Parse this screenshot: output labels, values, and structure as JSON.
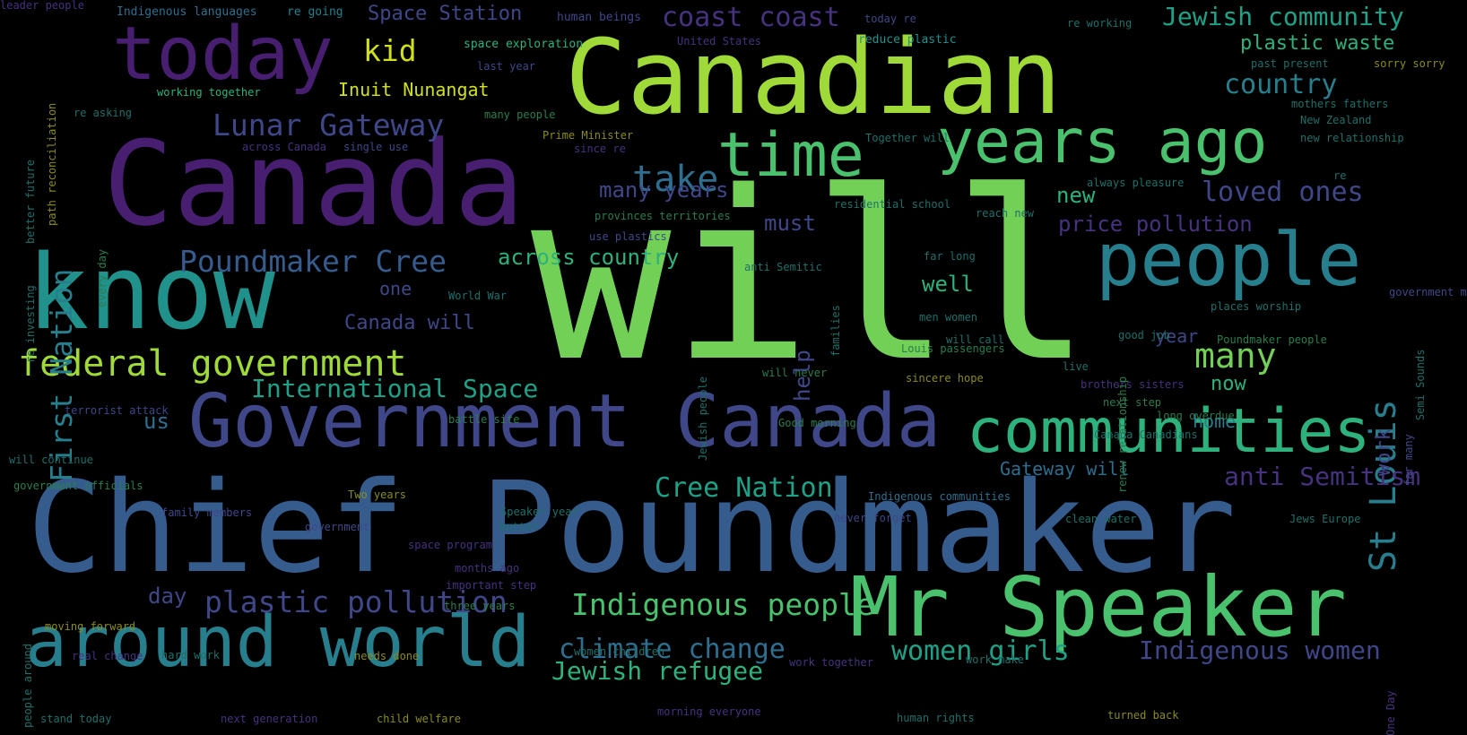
{
  "palette": {
    "dark_purple": "#481f70",
    "purple": "#46327e",
    "indigo": "#3f4788",
    "blue": "#365c8d",
    "steel": "#2e6e8e",
    "teal": "#277f8e",
    "sea": "#21918c",
    "green_teal": "#1fa187",
    "green": "#2db27d",
    "light_green": "#4ac16d",
    "lime": "#73d056",
    "yellow_green": "#a0da39",
    "yellow": "#d0e11c",
    "bright_yellow": "#fde725",
    "dim_teal": "#1f6f6a",
    "dim_green": "#2a7d4f",
    "dim_yellow": "#8a8a20"
  },
  "words": [
    {
      "text": "will",
      "color": "lime"
    },
    {
      "text": "Chief Poundmaker",
      "color": "blue"
    },
    {
      "text": "Canada",
      "color": "dark_purple"
    },
    {
      "text": "Canadian",
      "color": "yellow_green"
    },
    {
      "text": "know",
      "color": "sea"
    },
    {
      "text": "Government Canada",
      "color": "indigo"
    },
    {
      "text": "Mr Speaker",
      "color": "light_green"
    },
    {
      "text": "around world",
      "color": "teal"
    },
    {
      "text": "today",
      "color": "dark_purple"
    },
    {
      "text": "people",
      "color": "teal"
    },
    {
      "text": "communities",
      "color": "green"
    },
    {
      "text": "years ago",
      "color": "light_green"
    },
    {
      "text": "time",
      "color": "light_green"
    },
    {
      "text": "federal government",
      "color": "yellow_green"
    },
    {
      "text": "St Louis",
      "color": "teal"
    },
    {
      "text": "Lunar Gateway",
      "color": "indigo"
    },
    {
      "text": "Poundmaker Cree",
      "color": "blue"
    },
    {
      "text": "First Nation",
      "color": "teal"
    },
    {
      "text": "take",
      "color": "steel"
    },
    {
      "text": "many",
      "color": "lime"
    },
    {
      "text": "Jewish community",
      "color": "green_teal"
    },
    {
      "text": "plastic pollution",
      "color": "indigo"
    },
    {
      "text": "Indigenous people",
      "color": "light_green"
    },
    {
      "text": "climate change",
      "color": "steel"
    },
    {
      "text": "Cree Nation",
      "color": "green_teal"
    },
    {
      "text": "country",
      "color": "teal"
    },
    {
      "text": "loved ones",
      "color": "indigo"
    },
    {
      "text": "coast coast",
      "color": "purple"
    },
    {
      "text": "women girls",
      "color": "green_teal"
    },
    {
      "text": "Indigenous women",
      "color": "indigo"
    },
    {
      "text": "anti Semitism",
      "color": "purple"
    },
    {
      "text": "Jewish refugee",
      "color": "green"
    },
    {
      "text": "kid",
      "color": "yellow"
    },
    {
      "text": "International Space",
      "color": "green_teal"
    },
    {
      "text": "Space Station",
      "color": "indigo"
    },
    {
      "text": "plastic waste",
      "color": "green"
    },
    {
      "text": "across country",
      "color": "green"
    },
    {
      "text": "Inuit Nunangat",
      "color": "yellow"
    },
    {
      "text": "must",
      "color": "indigo"
    },
    {
      "text": "many years",
      "color": "indigo"
    },
    {
      "text": "price pollution",
      "color": "purple"
    },
    {
      "text": "new",
      "color": "green"
    },
    {
      "text": "well",
      "color": "green"
    },
    {
      "text": "Canada will",
      "color": "indigo"
    },
    {
      "text": "one",
      "color": "indigo"
    },
    {
      "text": "us",
      "color": "steel"
    },
    {
      "text": "day",
      "color": "indigo"
    },
    {
      "text": "Gateway will",
      "color": "steel"
    },
    {
      "text": "year",
      "color": "indigo"
    },
    {
      "text": "help",
      "color": "indigo"
    },
    {
      "text": "now",
      "color": "green"
    },
    {
      "text": "work",
      "color": "indigo"
    },
    {
      "text": "home",
      "color": "teal"
    },
    {
      "text": "Indigenous languages",
      "color": "steel"
    },
    {
      "text": "re going",
      "color": "teal"
    },
    {
      "text": "human beings",
      "color": "indigo"
    },
    {
      "text": "United States",
      "color": "purple"
    },
    {
      "text": "today re",
      "color": "indigo"
    },
    {
      "text": "space exploration",
      "color": "green"
    },
    {
      "text": "reduce plastic",
      "color": "sea"
    },
    {
      "text": "last year",
      "color": "indigo"
    },
    {
      "text": "working together",
      "color": "green"
    },
    {
      "text": "re working",
      "color": "dim_teal"
    },
    {
      "text": "past present",
      "color": "dim_teal"
    },
    {
      "text": "sorry sorry",
      "color": "dim_yellow"
    },
    {
      "text": "mothers fathers",
      "color": "dim_teal"
    },
    {
      "text": "New Zealand",
      "color": "dim_teal"
    },
    {
      "text": "new relationship",
      "color": "dim_teal"
    },
    {
      "text": "re asking",
      "color": "dim_teal"
    },
    {
      "text": "many people",
      "color": "dim_green"
    },
    {
      "text": "Prime Minister",
      "color": "dim_yellow"
    },
    {
      "text": "across Canada",
      "color": "purple"
    },
    {
      "text": "single use",
      "color": "indigo"
    },
    {
      "text": "Together will",
      "color": "dim_teal"
    },
    {
      "text": "since re",
      "color": "purple"
    },
    {
      "text": "always pleasure",
      "color": "dim_teal"
    },
    {
      "text": "provinces territories",
      "color": "dim_green"
    },
    {
      "text": "residential school",
      "color": "dim_teal"
    },
    {
      "text": "reach new",
      "color": "dim_teal"
    },
    {
      "text": "use plastics",
      "color": "indigo"
    },
    {
      "text": "far long",
      "color": "dim_teal"
    },
    {
      "text": "anti Semitic",
      "color": "dim_teal"
    },
    {
      "text": "World War",
      "color": "dim_teal"
    },
    {
      "text": "men women",
      "color": "dim_teal"
    },
    {
      "text": "places worship",
      "color": "dim_teal"
    },
    {
      "text": "will call",
      "color": "dim_teal"
    },
    {
      "text": "Poundmaker people",
      "color": "dim_green"
    },
    {
      "text": "Louis passengers",
      "color": "dim_green"
    },
    {
      "text": "live",
      "color": "dim_teal"
    },
    {
      "text": "will never",
      "color": "dim_green"
    },
    {
      "text": "sincere hope",
      "color": "dim_yellow"
    },
    {
      "text": "brothers sisters",
      "color": "purple"
    },
    {
      "text": "terrorist attack",
      "color": "indigo"
    },
    {
      "text": "battle site",
      "color": "dim_green"
    },
    {
      "text": "Good morning",
      "color": "dim_green"
    },
    {
      "text": "long overdue",
      "color": "dim_green"
    },
    {
      "text": "next step",
      "color": "dim_green"
    },
    {
      "text": "Canada Canadians",
      "color": "dim_teal"
    },
    {
      "text": "will continue",
      "color": "dim_teal"
    },
    {
      "text": "government officials",
      "color": "dim_green"
    },
    {
      "text": "Indigenous communities",
      "color": "steel"
    },
    {
      "text": "family members",
      "color": "indigo"
    },
    {
      "text": "Two years",
      "color": "dim_yellow"
    },
    {
      "text": "government",
      "color": "indigo"
    },
    {
      "text": "never forget",
      "color": "indigo"
    },
    {
      "text": "clean water",
      "color": "dim_teal"
    },
    {
      "text": "Jews Europe",
      "color": "dim_teal"
    },
    {
      "text": "space program",
      "color": "purple"
    },
    {
      "text": "Speaker year",
      "color": "dim_teal"
    },
    {
      "text": "months ago",
      "color": "purple"
    },
    {
      "text": "important step",
      "color": "purple"
    },
    {
      "text": "three years",
      "color": "dim_green"
    },
    {
      "text": "moving forward",
      "color": "dim_yellow"
    },
    {
      "text": "real change",
      "color": "purple"
    },
    {
      "text": "hard work",
      "color": "dim_teal"
    },
    {
      "text": "needs done",
      "color": "dim_yellow"
    },
    {
      "text": "women children",
      "color": "dim_teal"
    },
    {
      "text": "work together",
      "color": "purple"
    },
    {
      "text": "work make",
      "color": "dim_teal"
    },
    {
      "text": "stand today",
      "color": "dim_teal"
    },
    {
      "text": "next generation",
      "color": "purple"
    },
    {
      "text": "child welfare",
      "color": "dim_yellow"
    },
    {
      "text": "morning everyone",
      "color": "purple"
    },
    {
      "text": "human rights",
      "color": "dim_teal"
    },
    {
      "text": "turned back",
      "color": "dim_yellow"
    },
    {
      "text": "better",
      "color": "dim_teal"
    },
    {
      "text": "One Day",
      "color": "purple"
    },
    {
      "text": "people around",
      "color": "dim_teal"
    },
    {
      "text": "path reconciliation",
      "color": "dim_yellow"
    },
    {
      "text": "better future",
      "color": "dim_teal"
    },
    {
      "text": "re investing",
      "color": "dim_teal"
    },
    {
      "text": "every day",
      "color": "dim_green"
    },
    {
      "text": "Jewish people",
      "color": "dim_teal"
    },
    {
      "text": "renew relationship",
      "color": "dim_green"
    },
    {
      "text": "families",
      "color": "dim_teal"
    },
    {
      "text": "good job",
      "color": "dim_teal"
    },
    {
      "text": "far many",
      "color": "indigo"
    },
    {
      "text": "Semi Sounds",
      "color": "dim_teal"
    },
    {
      "text": "government management",
      "color": "indigo"
    },
    {
      "text": "re",
      "color": "dim_teal"
    },
    {
      "text": "leader people",
      "color": "purple"
    }
  ]
}
